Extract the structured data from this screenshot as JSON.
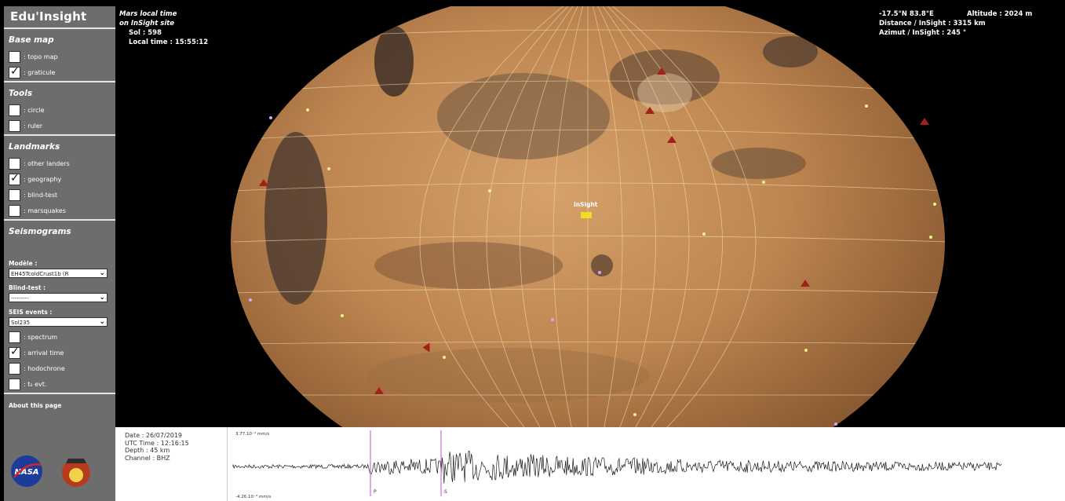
{
  "app": {
    "title": "Edu'Insight"
  },
  "sidebar": {
    "base_map": {
      "heading": "Base map",
      "items": [
        {
          "label": ": topo map",
          "checked": false
        },
        {
          "label": ": graticule",
          "checked": true
        }
      ]
    },
    "tools": {
      "heading": "Tools",
      "items": [
        {
          "label": ": circle",
          "checked": false
        },
        {
          "label": ": ruler",
          "checked": false
        }
      ]
    },
    "landmarks": {
      "heading": "Landmarks",
      "items": [
        {
          "label": ": other landers",
          "checked": false
        },
        {
          "label": ": geography",
          "checked": true
        },
        {
          "label": ": blind-test",
          "checked": false
        },
        {
          "label": ": marsquakes",
          "checked": false
        }
      ]
    },
    "seismograms": {
      "heading": "Seismograms",
      "modele_label": "Modèle :",
      "modele_value": "EH45TcoldCrust1b (R",
      "blindtest_label": "Blind-test :",
      "blindtest_value": "---------",
      "events_label": "SEIS events :",
      "events_value": "Sol235",
      "items": [
        {
          "label": ": spectrum",
          "checked": false
        },
        {
          "label": ": arrival time",
          "checked": true
        },
        {
          "label": ": hodochrone",
          "checked": false
        },
        {
          "label": ": t₀ evt.",
          "checked": false
        }
      ]
    },
    "about": "About this page"
  },
  "map": {
    "local_time_title_1": "Mars local time",
    "local_time_title_2": "on InSight site",
    "sol": "Sol : 598",
    "local_time": "Local time : 15:55:12",
    "coords": "-17.5°N 83.8°E",
    "altitude": "Altitude : 2024 m",
    "distance": "Distance / InSight : 3315 km",
    "azimut": "Azimut / InSight : 245 °",
    "insight_label": "InSight"
  },
  "seismogram": {
    "date": "Date : 26/07/2019",
    "utc": "UTC Time : 12:16:15",
    "depth": "Depth : 45 km",
    "channel": "Channel : BHZ",
    "amp_top": "3.77.10⁻³ mm/s",
    "amp_bottom": "-4.26.10⁻³ mm/s",
    "p_label": "P",
    "s_label": "S"
  },
  "colors": {
    "sidebar": "#6d6d6d",
    "lander": "#a2201a",
    "place_dot": "#f4f08a",
    "pick_line": "#c24fd6"
  }
}
